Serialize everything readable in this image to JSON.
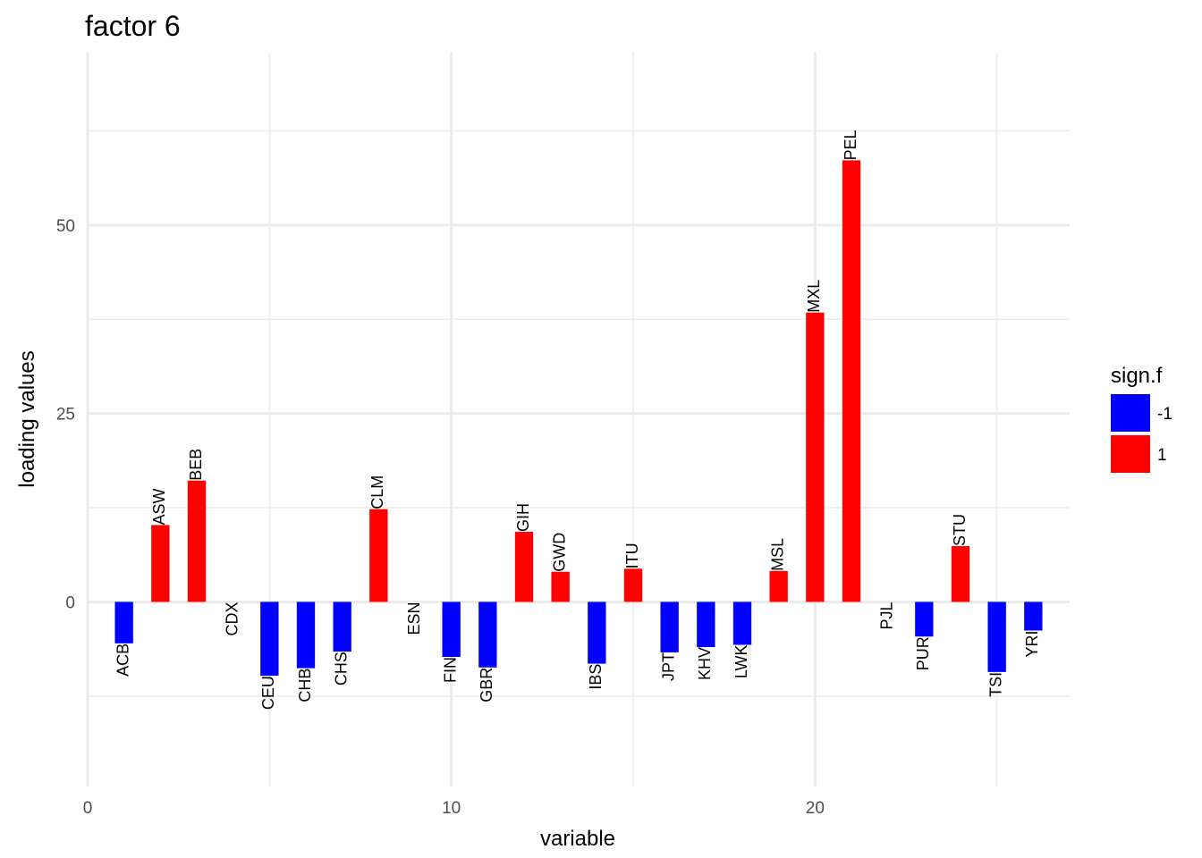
{
  "chart_data": {
    "type": "bar",
    "title": "factor 6",
    "xlabel": "variable",
    "ylabel": "loading values",
    "xlim": [
      0,
      27
    ],
    "ylim": [
      -24.5,
      73
    ],
    "x_ticks": [
      0,
      10,
      20
    ],
    "y_ticks": [
      0,
      25,
      50
    ],
    "grid": true,
    "legend": {
      "title": "sign.f",
      "placement": "right",
      "entries": [
        {
          "label": "-1",
          "color": "#0000FF"
        },
        {
          "label": "1",
          "color": "#FF0000"
        }
      ]
    },
    "colors": {
      "-1": "#0000FF",
      "1": "#FF0000"
    },
    "bars": [
      {
        "x": 1,
        "label": "ACB",
        "value": -5.5,
        "sign": "-1"
      },
      {
        "x": 2,
        "label": "ASW",
        "value": 10.2,
        "sign": "1"
      },
      {
        "x": 3,
        "label": "BEB",
        "value": 16.1,
        "sign": "1"
      },
      {
        "x": 4,
        "label": "CDX",
        "value": 0.0,
        "sign": "1"
      },
      {
        "x": 5,
        "label": "CEU",
        "value": -9.8,
        "sign": "-1"
      },
      {
        "x": 6,
        "label": "CHB",
        "value": -8.8,
        "sign": "-1"
      },
      {
        "x": 7,
        "label": "CHS",
        "value": -6.6,
        "sign": "-1"
      },
      {
        "x": 8,
        "label": "CLM",
        "value": 12.3,
        "sign": "1"
      },
      {
        "x": 9,
        "label": "ESN",
        "value": 0.0,
        "sign": "1"
      },
      {
        "x": 10,
        "label": "FIN",
        "value": -7.3,
        "sign": "-1"
      },
      {
        "x": 11,
        "label": "GBR",
        "value": -8.7,
        "sign": "-1"
      },
      {
        "x": 12,
        "label": "GIH",
        "value": 9.3,
        "sign": "1"
      },
      {
        "x": 13,
        "label": "GWD",
        "value": 4.0,
        "sign": "1"
      },
      {
        "x": 14,
        "label": "IBS",
        "value": -8.2,
        "sign": "-1"
      },
      {
        "x": 15,
        "label": "ITU",
        "value": 4.4,
        "sign": "1"
      },
      {
        "x": 16,
        "label": "JPT",
        "value": -6.7,
        "sign": "-1"
      },
      {
        "x": 17,
        "label": "KHV",
        "value": -6.0,
        "sign": "-1"
      },
      {
        "x": 18,
        "label": "LWK",
        "value": -5.7,
        "sign": "-1"
      },
      {
        "x": 19,
        "label": "MSL",
        "value": 4.1,
        "sign": "1"
      },
      {
        "x": 20,
        "label": "MXL",
        "value": 38.4,
        "sign": "1"
      },
      {
        "x": 21,
        "label": "PEL",
        "value": 58.6,
        "sign": "1"
      },
      {
        "x": 22,
        "label": "PJL",
        "value": 0.0,
        "sign": "1"
      },
      {
        "x": 23,
        "label": "PUR",
        "value": -4.6,
        "sign": "-1"
      },
      {
        "x": 24,
        "label": "STU",
        "value": 7.4,
        "sign": "1"
      },
      {
        "x": 25,
        "label": "TSI",
        "value": -9.3,
        "sign": "-1"
      },
      {
        "x": 26,
        "label": "YRI",
        "value": -3.8,
        "sign": "-1"
      }
    ]
  }
}
